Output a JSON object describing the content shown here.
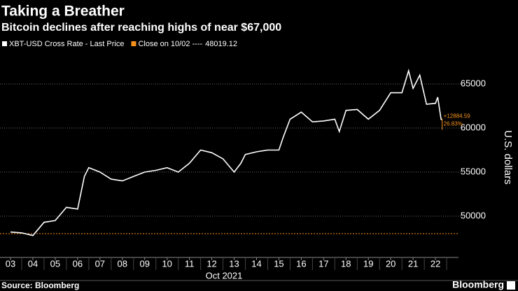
{
  "chart_data": {
    "type": "line",
    "title": "Taking a Breather",
    "subtitle": "Bitcoin declines after reaching highs of near $67,000",
    "source": "Source: Bloomberg",
    "logo": "Bloomberg",
    "ylabel": "U.S. dollars",
    "xlabel": "Oct 2021",
    "x": [
      3,
      3.5,
      4,
      4.5,
      5,
      5.5,
      6,
      6.3,
      6.5,
      7,
      7.5,
      8,
      8.5,
      9,
      9.5,
      10,
      10.5,
      11,
      11.5,
      12,
      12.5,
      13,
      13.3,
      13.5,
      14,
      14.5,
      15,
      15.2,
      15.5,
      16,
      16.5,
      17,
      17.5,
      17.7,
      18,
      18.5,
      19,
      19.5,
      20,
      20.5,
      20.8,
      21,
      21.3,
      21.6,
      22,
      22.1,
      22.25,
      22.3
    ],
    "series": [
      {
        "name": "XBT-USD Cross Rate - Last Price",
        "color": "#ffffff",
        "values": [
          48200,
          48100,
          47800,
          49300,
          49500,
          51000,
          50800,
          54500,
          55500,
          55000,
          54200,
          54000,
          54500,
          55000,
          55200,
          55500,
          55000,
          56000,
          57500,
          57200,
          56500,
          55000,
          56000,
          57000,
          57300,
          57500,
          57500,
          59000,
          61000,
          61800,
          60700,
          60800,
          61000,
          59600,
          62000,
          62100,
          61000,
          62000,
          64000,
          64000,
          66500,
          64500,
          66000,
          62700,
          62800,
          63500,
          61000,
          60903.71
        ]
      }
    ],
    "reference": {
      "name": "Close on 10/02 ----",
      "value": 48019.12,
      "color": "#f7931a"
    },
    "annotations": [
      "+12884.59",
      "26.83%"
    ],
    "xlim": [
      2.53,
      23.03
    ],
    "xticks": [
      {
        "value": 3,
        "label": "03"
      },
      {
        "value": 4,
        "label": "04"
      },
      {
        "value": 5,
        "label": "05"
      },
      {
        "value": 6,
        "label": "06"
      },
      {
        "value": 7,
        "label": "07"
      },
      {
        "value": 8,
        "label": "08"
      },
      {
        "value": 9,
        "label": "09"
      },
      10,
      11,
      12,
      13,
      14,
      15,
      16,
      17,
      18,
      19,
      20,
      21,
      22
    ],
    "ylim": [
      45317,
      67380
    ],
    "yticks": [
      50000,
      55000,
      60000,
      65000
    ],
    "grid": true
  }
}
